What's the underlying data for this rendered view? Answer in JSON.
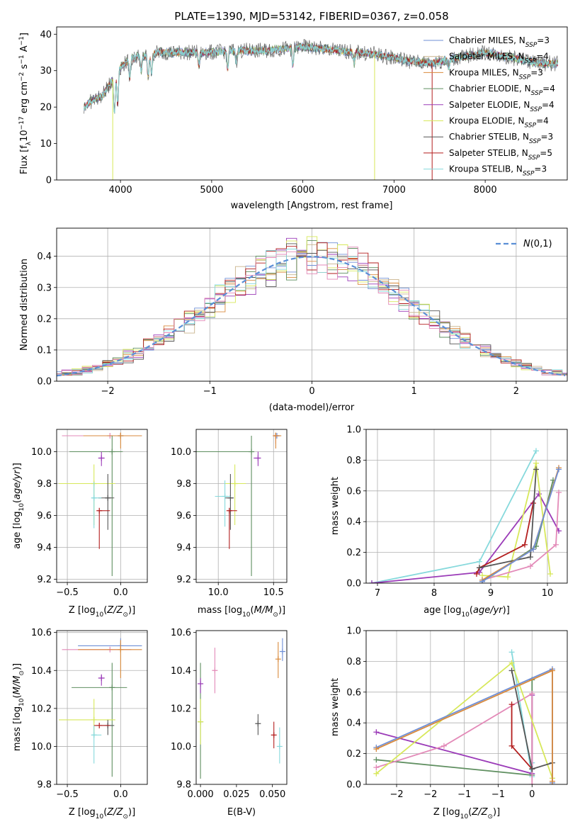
{
  "figure_title": "PLATE=1390, MJD=53142, FIBERID=0367, z=0.058",
  "colors": {
    "chabrier_miles": "#6f8fd6",
    "salpeter_miles": "#c9b48c",
    "kroupa_miles": "#d98a3c",
    "chabrier_elodie": "#5f8f60",
    "salpeter_elodie": "#9b3bb8",
    "kroupa_elodie": "#d7e85a",
    "chabrier_stelib": "#555555",
    "salpeter_stelib": "#b31e1e",
    "kroupa_stelib": "#86d9dc",
    "pink": "#e38ab8",
    "gauss": "#5b8fd6"
  },
  "chart_data": [
    {
      "id": "spectrum",
      "type": "line",
      "xlabel": "wavelength [Angstrom, rest frame]",
      "ylabel": "Flux [f_λ 10^-17 erg cm^-2 s^-1 A^-1]",
      "xlim": [
        3300,
        8900
      ],
      "ylim": [
        0,
        42
      ],
      "xticks": [
        4000,
        5000,
        6000,
        7000,
        8000
      ],
      "yticks": [
        0,
        10,
        20,
        30,
        40
      ],
      "grid": false,
      "legend_position": "upper right",
      "series": [
        {
          "name": "Chabrier MILES, N_SSP=3",
          "color_key": "chabrier_miles"
        },
        {
          "name": "Salpeter MILES, N_SSP=4",
          "color_key": "salpeter_miles"
        },
        {
          "name": "Kroupa MILES, N_SSP=3",
          "color_key": "kroupa_miles"
        },
        {
          "name": "Chabrier ELODIE, N_SSP=4",
          "color_key": "chabrier_elodie"
        },
        {
          "name": "Salpeter ELODIE, N_SSP=4",
          "color_key": "salpeter_elodie"
        },
        {
          "name": "Kroupa ELODIE, N_SSP=4",
          "color_key": "kroupa_elodie"
        },
        {
          "name": "Chabrier STELIB, N_SSP=3",
          "color_key": "chabrier_stelib"
        },
        {
          "name": "Salpeter STELIB, N_SSP=5",
          "color_key": "salpeter_stelib"
        },
        {
          "name": "Kroupa STELIB, N_SSP=3",
          "color_key": "kroupa_stelib"
        }
      ],
      "continuum": {
        "x": [
          3600,
          3700,
          3800,
          3900,
          4000,
          4100,
          4200,
          4300,
          4400,
          4500,
          4600,
          4800,
          5000,
          5200,
          5400,
          5600,
          5800,
          6000,
          6200,
          6400,
          6600,
          6800,
          7000,
          7200,
          7400,
          7600,
          7800,
          8000,
          8200,
          8400,
          8600,
          8800
        ],
        "y": [
          20,
          22,
          23,
          27,
          31,
          33,
          34,
          34,
          35,
          35,
          35,
          35,
          35,
          35.5,
          35.5,
          35.5,
          36,
          36.5,
          36,
          35.5,
          35,
          34.5,
          33.5,
          32.5,
          32,
          33,
          34,
          35,
          34,
          33,
          32,
          32
        ]
      },
      "spikes": [
        {
          "x": 3915,
          "y_low": 0,
          "color_key": "kroupa_elodie"
        },
        {
          "x": 6787,
          "y_low": 0,
          "color_key": "kroupa_elodie"
        },
        {
          "x": 7418,
          "y_low": 0,
          "color_key": "salpeter_stelib"
        }
      ]
    },
    {
      "id": "residuals",
      "type": "line",
      "xlabel": "(data-model)/error",
      "ylabel": "Normed distribution",
      "xlim": [
        -2.5,
        2.5
      ],
      "ylim": [
        0,
        0.49
      ],
      "xticks": [
        -2,
        -1,
        0,
        1,
        2
      ],
      "yticks": [
        0.0,
        0.1,
        0.2,
        0.3,
        0.4
      ],
      "grid": true,
      "legend_position": "upper right",
      "gauss_label": "N(0,1)",
      "bin_width": 0.1
    },
    {
      "id": "age_vs_Z",
      "type": "scatter",
      "xlabel": "Z [log10(Z/Z_sun)]",
      "ylabel": "age [log10(age/yr)]",
      "xlim": [
        -0.6,
        0.25
      ],
      "ylim": [
        9.18,
        10.14
      ],
      "xticks": [
        -0.5,
        0.0
      ],
      "yticks": [
        9.2,
        9.4,
        9.6,
        9.8,
        10.0
      ],
      "grid": true,
      "points": [
        {
          "color_key": "chabrier_miles",
          "x": 0.0,
          "xerr": [
            0.35,
            0.2
          ],
          "y": 10.1,
          "yerr": [
            0.0,
            0.0
          ]
        },
        {
          "color_key": "pink",
          "x": -0.1,
          "xerr": [
            0.45,
            0.3
          ],
          "y": 10.1,
          "yerr": [
            0.0,
            0.0
          ]
        },
        {
          "color_key": "kroupa_miles",
          "x": 0.0,
          "xerr": [
            0.35,
            0.2
          ],
          "y": 10.1,
          "yerr": [
            0.08,
            0.02
          ]
        },
        {
          "color_key": "chabrier_elodie",
          "x": -0.08,
          "xerr": [
            0.4,
            0.1
          ],
          "y": 10.0,
          "yerr": [
            0.78,
            0.1
          ]
        },
        {
          "color_key": "salpeter_elodie",
          "x": -0.18,
          "xerr": [
            0.03,
            0.03
          ],
          "y": 9.96,
          "yerr": [
            0.05,
            0.04
          ]
        },
        {
          "color_key": "kroupa_elodie",
          "x": -0.25,
          "xerr": [
            0.33,
            0.2
          ],
          "y": 9.8,
          "yerr": [
            0.26,
            0.12
          ]
        },
        {
          "color_key": "chabrier_stelib",
          "x": -0.12,
          "xerr": [
            0.09,
            0.06
          ],
          "y": 9.71,
          "yerr": [
            0.2,
            0.15
          ]
        },
        {
          "color_key": "salpeter_stelib",
          "x": -0.2,
          "xerr": [
            0.0,
            0.1
          ],
          "y": 9.63,
          "yerr": [
            0.24,
            0.0
          ]
        },
        {
          "color_key": "kroupa_stelib",
          "x": -0.25,
          "xerr": [
            0.02,
            0.07
          ],
          "y": 9.71,
          "yerr": [
            0.19,
            0.1
          ]
        }
      ]
    },
    {
      "id": "age_vs_mass",
      "type": "scatter",
      "xlabel": "mass [log10(M/M_sun)]",
      "ylabel": "",
      "xlim": [
        9.8,
        10.62
      ],
      "ylim": [
        9.18,
        10.14
      ],
      "xticks": [
        10.0,
        10.5
      ],
      "yticks": [
        9.2,
        9.4,
        9.6,
        9.8,
        10.0
      ],
      "grid": true,
      "points": [
        {
          "color_key": "chabrier_miles",
          "x": 10.53,
          "xerr": [
            0.03,
            0.03
          ],
          "y": 10.1,
          "yerr": [
            0.0,
            0.0
          ]
        },
        {
          "color_key": "pink",
          "x": 10.52,
          "xerr": [
            0.02,
            0.03
          ],
          "y": 10.1,
          "yerr": [
            0.05,
            0.0
          ]
        },
        {
          "color_key": "kroupa_miles",
          "x": 10.52,
          "xerr": [
            0.02,
            0.05
          ],
          "y": 10.1,
          "yerr": [
            0.08,
            0.02
          ]
        },
        {
          "color_key": "chabrier_elodie",
          "x": 10.3,
          "xerr": [
            0.5,
            0.0
          ],
          "y": 10.0,
          "yerr": [
            0.78,
            0.1
          ]
        },
        {
          "color_key": "salpeter_elodie",
          "x": 10.36,
          "xerr": [
            0.04,
            0.02
          ],
          "y": 9.96,
          "yerr": [
            0.05,
            0.04
          ]
        },
        {
          "color_key": "kroupa_elodie",
          "x": 10.15,
          "xerr": [
            0.09,
            0.1
          ],
          "y": 9.8,
          "yerr": [
            0.26,
            0.12
          ]
        },
        {
          "color_key": "chabrier_stelib",
          "x": 10.11,
          "xerr": [
            0.05,
            0.03
          ],
          "y": 9.71,
          "yerr": [
            0.2,
            0.15
          ]
        },
        {
          "color_key": "salpeter_stelib",
          "x": 10.1,
          "xerr": [
            0.0,
            0.07
          ],
          "y": 9.63,
          "yerr": [
            0.24,
            0.0
          ]
        },
        {
          "color_key": "kroupa_stelib",
          "x": 10.06,
          "xerr": [
            0.09,
            0.05
          ],
          "y": 9.72,
          "yerr": [
            0.19,
            0.1
          ]
        }
      ]
    },
    {
      "id": "weight_vs_age",
      "type": "line",
      "xlabel": "age [log10(age/yr)]",
      "ylabel": "mass weight",
      "xlim": [
        6.8,
        10.35
      ],
      "ylim": [
        0,
        1.0
      ],
      "xticks": [
        7,
        8,
        9,
        10
      ],
      "yticks": [
        0.0,
        0.2,
        0.4,
        0.6,
        0.8,
        1.0
      ],
      "grid": true,
      "series": [
        {
          "color_key": "kroupa_stelib",
          "x": [
            6.9,
            8.8,
            9.8
          ],
          "y": [
            0.0,
            0.14,
            0.86
          ]
        },
        {
          "color_key": "salpeter_elodie",
          "x": [
            6.9,
            8.8,
            9.85,
            10.2
          ],
          "y": [
            0.0,
            0.07,
            0.58,
            0.34
          ]
        },
        {
          "color_key": "kroupa_elodie",
          "x": [
            8.85,
            9.3,
            9.8,
            10.05
          ],
          "y": [
            0.05,
            0.04,
            0.78,
            0.06
          ]
        },
        {
          "color_key": "pink",
          "x": [
            8.85,
            9.7,
            10.15,
            10.2
          ],
          "y": [
            0.02,
            0.11,
            0.25,
            0.59
          ]
        },
        {
          "color_key": "salpeter_stelib",
          "x": [
            8.75,
            8.8,
            9.6,
            9.75
          ],
          "y": [
            0.06,
            0.1,
            0.25,
            0.52
          ]
        },
        {
          "color_key": "chabrier_stelib",
          "x": [
            8.8,
            9.7,
            9.8
          ],
          "y": [
            0.1,
            0.17,
            0.74
          ]
        },
        {
          "color_key": "chabrier_elodie",
          "x": [
            8.85,
            9.8,
            10.1
          ],
          "y": [
            0.01,
            0.24,
            0.67
          ]
        },
        {
          "color_key": "kroupa_miles",
          "x": [
            8.85,
            9.75,
            10.2
          ],
          "y": [
            0.02,
            0.22,
            0.75
          ]
        },
        {
          "color_key": "chabrier_miles",
          "x": [
            8.85,
            9.75,
            10.2
          ],
          "y": [
            0.01,
            0.22,
            0.74
          ]
        }
      ]
    },
    {
      "id": "mass_vs_Z",
      "type": "scatter",
      "xlabel": "Z [log10(Z/Z_sun)]",
      "ylabel": "mass [log10(M/M_sun)]",
      "xlim": [
        -0.6,
        0.25
      ],
      "ylim": [
        9.8,
        10.61
      ],
      "xticks": [
        -0.5,
        0.0
      ],
      "yticks": [
        9.8,
        10.0,
        10.2,
        10.4,
        10.6
      ],
      "grid": true,
      "points": [
        {
          "color_key": "chabrier_miles",
          "x": 0.0,
          "xerr": [
            0.4,
            0.2
          ],
          "y": 10.53,
          "yerr": [
            0.0,
            0.04
          ]
        },
        {
          "color_key": "pink",
          "x": -0.1,
          "xerr": [
            0.45,
            0.2
          ],
          "y": 10.51,
          "yerr": [
            0.0,
            0.0
          ]
        },
        {
          "color_key": "kroupa_miles",
          "x": 0.0,
          "xerr": [
            0.4,
            0.2
          ],
          "y": 10.51,
          "yerr": [
            0.15,
            0.05
          ]
        },
        {
          "color_key": "chabrier_elodie",
          "x": -0.08,
          "xerr": [
            0.38,
            0.14
          ],
          "y": 10.31,
          "yerr": [
            0.47,
            0.13
          ]
        },
        {
          "color_key": "salpeter_elodie",
          "x": -0.18,
          "xerr": [
            0.03,
            0.03
          ],
          "y": 10.36,
          "yerr": [
            0.04,
            0.02
          ]
        },
        {
          "color_key": "kroupa_elodie",
          "x": -0.25,
          "xerr": [
            0.33,
            0.2
          ],
          "y": 10.14,
          "yerr": [
            0.09,
            0.11
          ]
        },
        {
          "color_key": "chabrier_stelib",
          "x": -0.12,
          "xerr": [
            0.09,
            0.06
          ],
          "y": 10.11,
          "yerr": [
            0.05,
            0.03
          ]
        },
        {
          "color_key": "salpeter_stelib",
          "x": -0.2,
          "xerr": [
            0.05,
            0.1
          ],
          "y": 10.11,
          "yerr": [
            0.0,
            0.0
          ]
        },
        {
          "color_key": "kroupa_stelib",
          "x": -0.25,
          "xerr": [
            0.02,
            0.07
          ],
          "y": 10.06,
          "yerr": [
            0.15,
            0.05
          ]
        }
      ]
    },
    {
      "id": "mass_vs_ebv",
      "type": "scatter",
      "xlabel": "E(B-V)",
      "ylabel": "",
      "xlim": [
        -0.003,
        0.06
      ],
      "ylim": [
        9.8,
        10.61
      ],
      "xticks": [
        0.0,
        0.025,
        0.05
      ],
      "xticklabels": [
        "0.000",
        "0.025",
        "0.050"
      ],
      "yticks": [
        9.8,
        10.0,
        10.2,
        10.4,
        10.6
      ],
      "grid": false,
      "points": [
        {
          "color_key": "chabrier_miles",
          "x": 0.057,
          "y": 10.5,
          "yerr": [
            0.05,
            0.07
          ]
        },
        {
          "color_key": "pink",
          "x": 0.01,
          "y": 10.4,
          "yerr": [
            0.12,
            0.12
          ]
        },
        {
          "color_key": "kroupa_miles",
          "x": 0.054,
          "y": 10.46,
          "yerr": [
            0.1,
            0.09
          ]
        },
        {
          "color_key": "chabrier_elodie",
          "x": 0.0,
          "y": 10.13,
          "yerr": [
            0.3,
            0.31
          ]
        },
        {
          "color_key": "salpeter_elodie",
          "x": 0.0,
          "y": 10.33,
          "yerr": [
            0.05,
            0.03
          ]
        },
        {
          "color_key": "kroupa_elodie",
          "x": 0.0,
          "y": 10.13,
          "yerr": [
            0.12,
            0.12
          ]
        },
        {
          "color_key": "chabrier_stelib",
          "x": 0.04,
          "y": 10.12,
          "yerr": [
            0.06,
            0.05
          ]
        },
        {
          "color_key": "salpeter_stelib",
          "x": 0.051,
          "y": 10.06,
          "yerr": [
            0.07,
            0.07
          ]
        },
        {
          "color_key": "kroupa_stelib",
          "x": 0.055,
          "y": 10.0,
          "yerr": [
            0.09,
            0.1
          ]
        }
      ]
    },
    {
      "id": "weight_vs_Z",
      "type": "line",
      "xlabel": "Z [log10(Z/Z_sun)]",
      "ylabel": "mass weight",
      "xlim": [
        -2.45,
        0.52
      ],
      "ylim": [
        0,
        1.0
      ],
      "xticks": [
        -2.0,
        -1.5,
        -1.0,
        -0.5,
        0.0
      ],
      "yticks": [
        0.0,
        0.2,
        0.4,
        0.6,
        0.8,
        1.0
      ],
      "grid": true,
      "series": [
        {
          "color_key": "kroupa_stelib",
          "x": [
            -0.3,
            0.0,
            0.0
          ],
          "y": [
            0.86,
            0.05,
            0.14
          ]
        },
        {
          "color_key": "chabrier_elodie",
          "x": [
            -2.3,
            0.0,
            0.0
          ],
          "y": [
            0.16,
            0.06,
            0.68
          ]
        },
        {
          "color_key": "salpeter_elodie",
          "x": [
            -2.3,
            0.0,
            0.0
          ],
          "y": [
            0.34,
            0.07,
            0.58
          ]
        },
        {
          "color_key": "pink",
          "x": [
            -2.3,
            -1.3,
            0.0,
            0.0
          ],
          "y": [
            0.11,
            0.25,
            0.59,
            0.0
          ]
        },
        {
          "color_key": "kroupa_elodie",
          "x": [
            -2.3,
            -0.3,
            0.3
          ],
          "y": [
            0.07,
            0.79,
            0.04
          ]
        },
        {
          "color_key": "salpeter_stelib",
          "x": [
            -0.3,
            -0.3,
            0.0
          ],
          "y": [
            0.52,
            0.25,
            0.1
          ]
        },
        {
          "color_key": "chabrier_stelib",
          "x": [
            -0.3,
            0.0,
            0.3
          ],
          "y": [
            0.74,
            0.1,
            0.14
          ]
        },
        {
          "color_key": "chabrier_miles",
          "x": [
            -2.3,
            0.3,
            0.3
          ],
          "y": [
            0.24,
            0.75,
            0.01
          ]
        },
        {
          "color_key": "kroupa_miles",
          "x": [
            -2.3,
            0.3,
            0.3
          ],
          "y": [
            0.23,
            0.74,
            0.02
          ]
        }
      ]
    }
  ]
}
